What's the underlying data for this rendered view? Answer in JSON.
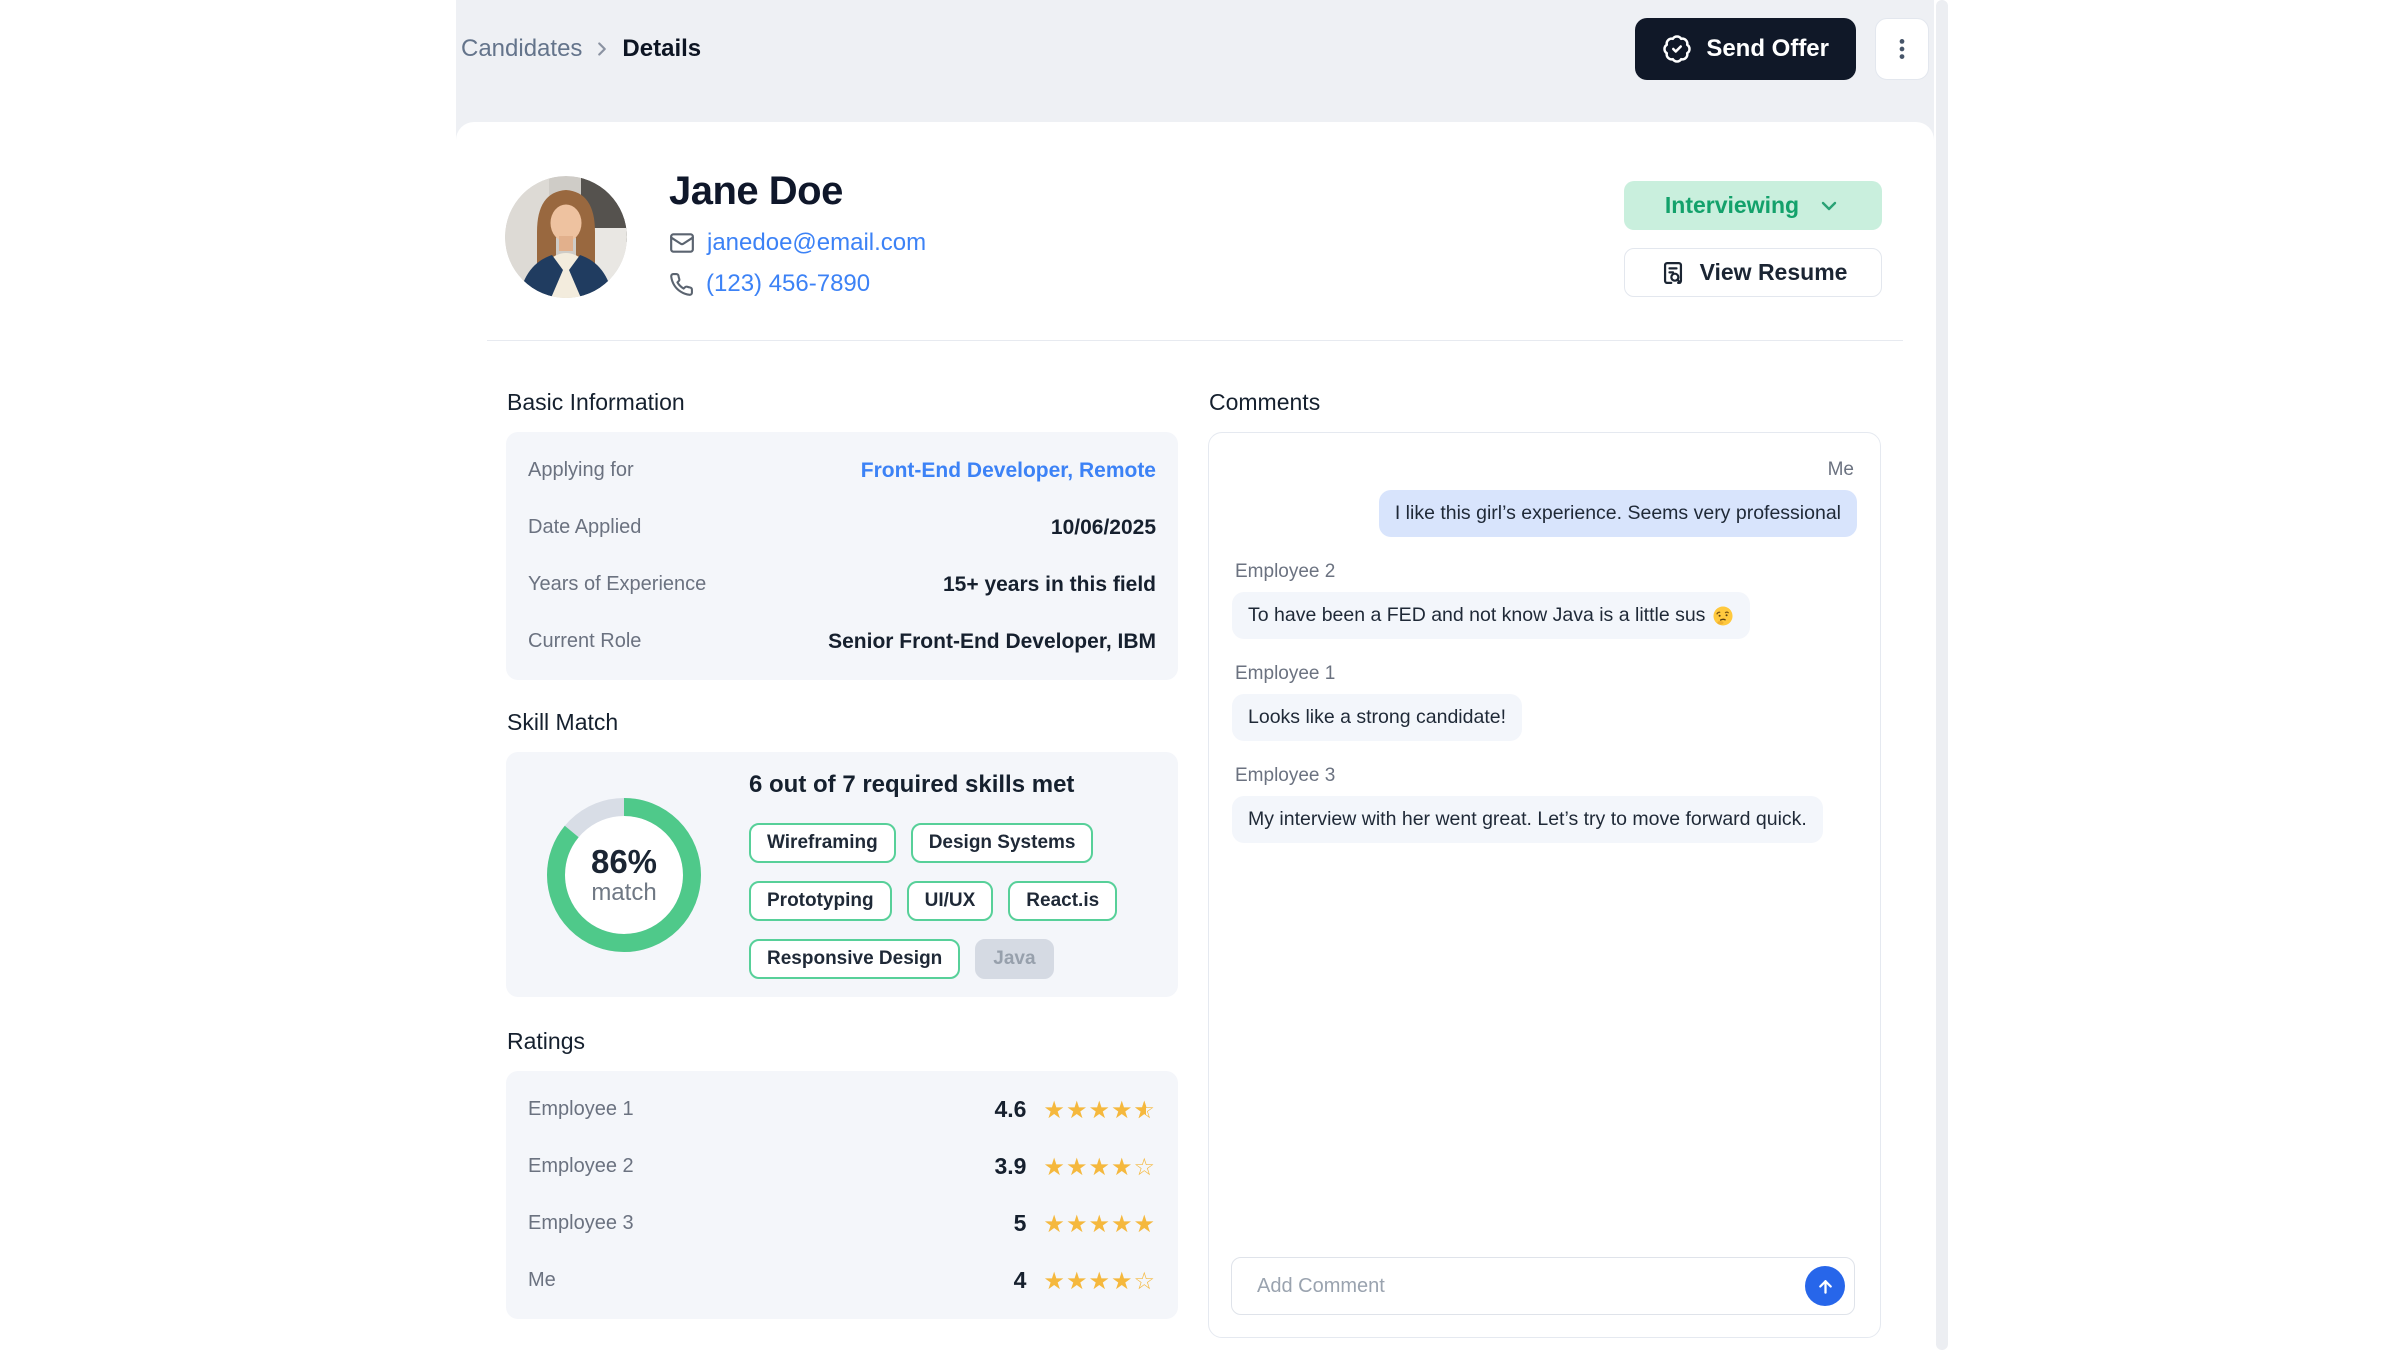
{
  "breadcrumb": {
    "parent": "Candidates",
    "current": "Details"
  },
  "topbar": {
    "send_offer_label": "Send Offer"
  },
  "profile": {
    "name": "Jane Doe",
    "email": "janedoe@email.com",
    "phone": "(123) 456-7890",
    "status_label": "Interviewing",
    "view_resume_label": "View Resume"
  },
  "basic_info": {
    "title": "Basic Information",
    "rows": [
      {
        "label": "Applying for",
        "value": "Front-End Developer, Remote",
        "is_link": true
      },
      {
        "label": "Date Applied",
        "value": "10/06/2025",
        "is_link": false
      },
      {
        "label": "Years of Experience",
        "value": "15+ years in this field",
        "is_link": false
      },
      {
        "label": "Current Role",
        "value": "Senior Front-End Developer, IBM",
        "is_link": false
      }
    ]
  },
  "skill_match": {
    "title": "Skill Match",
    "match_percent": 86,
    "percent_label": "86%",
    "percent_sublabel": "match",
    "headline": "6 out of 7 required skills met",
    "skills_met": 6,
    "skills_required": 7,
    "skills": [
      {
        "name": "Wireframing",
        "matched": true
      },
      {
        "name": "Design Systems",
        "matched": true
      },
      {
        "name": "Prototyping",
        "matched": true
      },
      {
        "name": "UI/UX",
        "matched": true
      },
      {
        "name": "React.is",
        "matched": true
      },
      {
        "name": "Responsive Design",
        "matched": true
      },
      {
        "name": "Java",
        "matched": false
      }
    ]
  },
  "ratings": {
    "title": "Ratings",
    "rows": [
      {
        "name": "Employee 1",
        "value": "4.6",
        "stars": 4.6
      },
      {
        "name": "Employee 2",
        "value": "3.9",
        "stars": 3.9
      },
      {
        "name": "Employee 3",
        "value": "5",
        "stars": 5
      },
      {
        "name": "Me",
        "value": "4",
        "stars": 4
      }
    ]
  },
  "comments": {
    "title": "Comments",
    "items": [
      {
        "author": "Me",
        "text": "I like this girl’s experience. Seems very professional",
        "self": true,
        "emoji": ""
      },
      {
        "author": "Employee 2",
        "text": "To have been a FED and not know Java is a little sus",
        "self": false,
        "emoji": "🤔"
      },
      {
        "author": "Employee 1",
        "text": "Looks like a strong candidate!",
        "self": false,
        "emoji": ""
      },
      {
        "author": "Employee 3",
        "text": "My interview with her went great. Let’s try to move forward quick.",
        "self": false,
        "emoji": ""
      }
    ],
    "input_placeholder": "Add Comment"
  },
  "colors": {
    "header_strip": "#eef0f4",
    "panel_bg": "#f4f6fa",
    "accent_blue": "#3c82f6",
    "send_offer_bg": "#101828",
    "status_green_bg": "#c9efdd",
    "status_green_text": "#13a16b",
    "chip_border_green": "#57d099",
    "donut_green": "#4fc98a",
    "donut_track": "#d8dde6",
    "star_amber": "#f5b83d",
    "me_bubble_bg": "#d8e4fc",
    "bubble_bg": "#f3f6fb",
    "send_button_bg": "#2766ea"
  }
}
